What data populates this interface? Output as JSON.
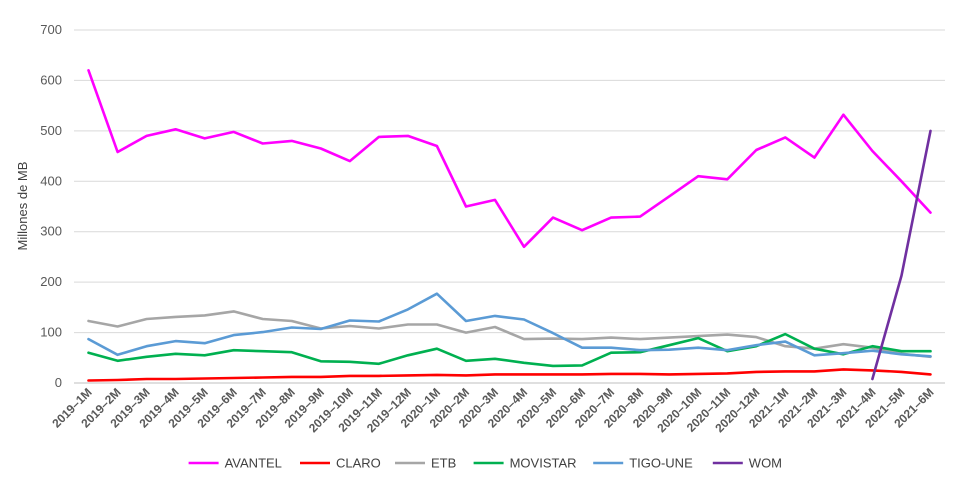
{
  "chart_data": {
    "type": "line",
    "title": "",
    "xlabel": "",
    "ylabel": "Millones de MB",
    "ylim": [
      0,
      700
    ],
    "yticks": [
      0,
      100,
      200,
      300,
      400,
      500,
      600,
      700
    ],
    "grid": true,
    "legend_position": "bottom",
    "categories": [
      "2019–1M",
      "2019–2M",
      "2019–3M",
      "2019–4M",
      "2019–5M",
      "2019–6M",
      "2019–7M",
      "2019–8M",
      "2019–9M",
      "2019–10M",
      "2019–11M",
      "2019–12M",
      "2020–1M",
      "2020–2M",
      "2020–3M",
      "2020–4M",
      "2020–5M",
      "2020–6M",
      "2020–7M",
      "2020–8M",
      "2020–9M",
      "2020–10M",
      "2020–11M",
      "2020–12M",
      "2021–1M",
      "2021–2M",
      "2021–3M",
      "2021–4M",
      "2021–5M",
      "2021–6M"
    ],
    "series": [
      {
        "name": "AVANTEL",
        "color": "#ff00ff",
        "values": [
          620,
          458,
          490,
          503,
          485,
          498,
          475,
          480,
          465,
          440,
          488,
          490,
          470,
          350,
          363,
          270,
          328,
          303,
          328,
          330,
          370,
          410,
          404,
          462,
          487,
          447,
          532,
          460,
          400,
          338
        ]
      },
      {
        "name": "CLARO",
        "color": "#ff0000",
        "values": [
          5,
          6,
          8,
          8,
          9,
          10,
          11,
          12,
          12,
          14,
          14,
          15,
          16,
          15,
          17,
          17,
          17,
          17,
          18,
          18,
          17,
          18,
          19,
          22,
          23,
          23,
          27,
          25,
          22,
          17
        ]
      },
      {
        "name": "ETB",
        "color": "#a6a6a6",
        "values": [
          123,
          112,
          127,
          131,
          134,
          142,
          127,
          123,
          108,
          113,
          108,
          116,
          116,
          100,
          111,
          87,
          88,
          87,
          90,
          87,
          90,
          93,
          96,
          91,
          73,
          68,
          77,
          70,
          58,
          52
        ]
      },
      {
        "name": "MOVISTAR",
        "color": "#00b050",
        "values": [
          60,
          44,
          52,
          58,
          55,
          65,
          63,
          61,
          43,
          42,
          38,
          55,
          68,
          44,
          48,
          40,
          34,
          35,
          60,
          61,
          75,
          89,
          63,
          73,
          97,
          68,
          57,
          73,
          63,
          63
        ]
      },
      {
        "name": "TIGO-UNE",
        "color": "#5b9bd5",
        "values": [
          87,
          56,
          73,
          83,
          79,
          95,
          101,
          110,
          107,
          124,
          122,
          146,
          177,
          123,
          133,
          126,
          99,
          70,
          70,
          65,
          66,
          70,
          65,
          75,
          82,
          55,
          59,
          64,
          57,
          53
        ]
      },
      {
        "name": "WOM",
        "color": "#7030a0",
        "values": [
          null,
          null,
          null,
          null,
          null,
          null,
          null,
          null,
          null,
          null,
          null,
          null,
          null,
          null,
          null,
          null,
          null,
          null,
          null,
          null,
          null,
          null,
          null,
          null,
          null,
          null,
          null,
          8,
          213,
          500
        ]
      }
    ]
  }
}
